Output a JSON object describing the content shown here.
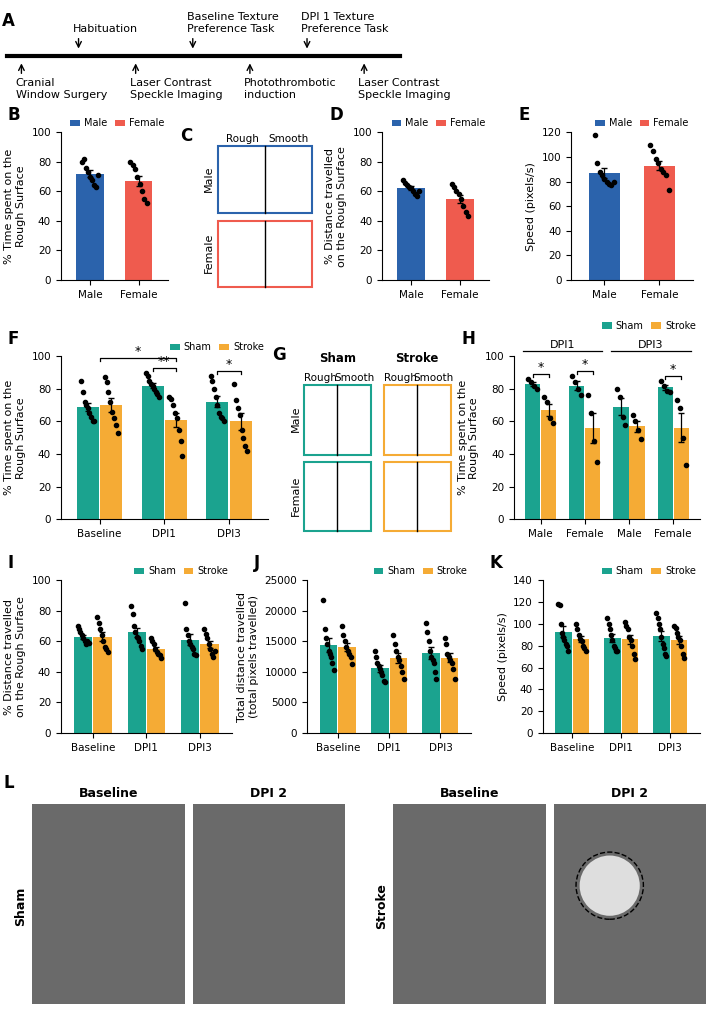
{
  "chart_data": [
    {
      "panel": "B",
      "type": "bar",
      "categories": [
        "Male",
        "Female"
      ],
      "ylabel": "% Time spent on the\nRough Surface",
      "ylim": [
        0,
        100
      ],
      "yticks": [
        0,
        20,
        40,
        60,
        80,
        100
      ],
      "legend": "upper right",
      "series": [
        {
          "name": "Male",
          "color": "#2b63ac",
          "values": [
            71.9,
            null
          ],
          "errors": [
            2.3,
            null
          ],
          "points": [
            [
              80,
              82,
              76,
              73,
              70,
              68,
              64,
              63,
              71
            ],
            null
          ]
        },
        {
          "name": "Female",
          "color": "#ef5b4e",
          "values": [
            null,
            66.9
          ],
          "errors": [
            null,
            3.5
          ],
          "points": [
            null,
            [
              80,
              78,
              75,
              70,
              65,
              60,
              55,
              52
            ]
          ]
        }
      ]
    },
    {
      "panel": "D",
      "type": "bar",
      "categories": [
        "Male",
        "Female"
      ],
      "ylabel": "% Distance travelled\non the Rough Surface",
      "ylim": [
        0,
        100
      ],
      "yticks": [
        0,
        20,
        40,
        60,
        80,
        100
      ],
      "legend": "upper right",
      "series": [
        {
          "name": "Male",
          "color": "#2b63ac",
          "values": [
            62,
            null
          ],
          "errors": [
            1.4,
            null
          ],
          "points": [
            [
              68,
              66,
              64,
              63,
              62,
              60,
              58,
              57,
              60
            ],
            null
          ]
        },
        {
          "name": "Female",
          "color": "#ef5b4e",
          "values": [
            null,
            55
          ],
          "errors": [
            null,
            2.8
          ],
          "points": [
            null,
            [
              65,
              63,
              60,
              58,
              55,
              50,
              46,
              43
            ]
          ]
        }
      ]
    },
    {
      "panel": "E",
      "type": "bar",
      "categories": [
        "Male",
        "Female"
      ],
      "ylabel": "Speed (pixels/s)",
      "ylim": [
        0,
        120
      ],
      "yticks": [
        0,
        20,
        40,
        60,
        80,
        100,
        120
      ],
      "legend": "upper right",
      "series": [
        {
          "name": "Male",
          "color": "#2b63ac",
          "values": [
            87,
            null
          ],
          "errors": [
            4,
            null
          ],
          "points": [
            [
              118,
              95,
              88,
              85,
              82,
              80,
              78,
              77,
              80
            ],
            null
          ]
        },
        {
          "name": "Female",
          "color": "#ef5b4e",
          "values": [
            null,
            93
          ],
          "errors": [
            null,
            4
          ],
          "points": [
            null,
            [
              110,
              105,
              98,
              95,
              90,
              88,
              85,
              73
            ]
          ]
        }
      ]
    },
    {
      "panel": "F",
      "type": "bar",
      "categories": [
        "Baseline",
        "DPI1",
        "DPI3"
      ],
      "ylabel": "% Time spent on the\nRough Surface",
      "ylim": [
        0,
        100
      ],
      "yticks": [
        0,
        20,
        40,
        60,
        80,
        100
      ],
      "legend": "upper right",
      "series": [
        {
          "name": "Sham",
          "color": "#1ba38f",
          "values": [
            69,
            82,
            72
          ],
          "errors": [
            2.6,
            1.6,
            3.4
          ],
          "points": [
            [
              85,
              78,
              72,
              70,
              68,
              65,
              63,
              60,
              60
            ],
            [
              90,
              88,
              85,
              83,
              82,
              80,
              78,
              77,
              75
            ],
            [
              88,
              85,
              80,
              75,
              70,
              65,
              63,
              62,
              60
            ]
          ]
        },
        {
          "name": "Stroke",
          "color": "#f5ab35",
          "values": [
            70,
            61,
            60
          ],
          "errors": [
            4.2,
            4.4,
            5.2
          ],
          "points": [
            [
              87,
              84,
              78,
              72,
              66,
              62,
              58,
              53
            ],
            [
              75,
              74,
              70,
              65,
              62,
              55,
              48,
              39
            ],
            [
              83,
              73,
              68,
              64,
              55,
              50,
              45,
              42
            ]
          ]
        }
      ],
      "significance": [
        {
          "label": "**",
          "between": [
            [
              1,
              0
            ],
            [
              1,
              1
            ]
          ]
        },
        {
          "label": "*",
          "between": [
            [
              0,
              null
            ],
            [
              1,
              1
            ]
          ]
        },
        {
          "label": "*",
          "between": [
            [
              2,
              0
            ],
            [
              2,
              1
            ]
          ]
        }
      ]
    },
    {
      "panel": "H",
      "type": "bar",
      "categories": [
        "Male",
        "Female",
        "Male",
        "Female"
      ],
      "ylabel": "% Time spent on the\nRough Surface",
      "ylim": [
        0,
        100
      ],
      "yticks": [
        0,
        20,
        40,
        60,
        80,
        100
      ],
      "legend": "upper right",
      "groups": [
        {
          "label": "DPI1",
          "categories": [
            0,
            1
          ]
        },
        {
          "label": "DPI3",
          "categories": [
            2,
            3
          ]
        }
      ],
      "series": [
        {
          "name": "Sham",
          "color": "#1ba38f",
          "values": [
            83,
            82,
            69,
            81
          ],
          "errors": [
            1.3,
            2.6,
            5.1,
            1.6
          ],
          "points": [
            [
              86,
              84,
              82,
              80
            ],
            [
              88,
              84,
              80,
              76
            ],
            [
              80,
              75,
              63,
              58
            ],
            [
              85,
              82,
              79,
              78
            ]
          ]
        },
        {
          "name": "Stroke",
          "color": "#f5ab35",
          "values": [
            67,
            56,
            57,
            56
          ],
          "errors": [
            3.8,
            9,
            3.3,
            8.9
          ],
          "points": [
            [
              75,
              72,
              62,
              59
            ],
            [
              76,
              65,
              48,
              35
            ],
            [
              64,
              60,
              55,
              49
            ],
            [
              73,
              68,
              50,
              33
            ]
          ]
        }
      ],
      "significance": [
        {
          "label": "*",
          "between": [
            [
              0,
              0
            ],
            [
              0,
              1
            ]
          ]
        },
        {
          "label": "*",
          "between": [
            [
              1,
              0
            ],
            [
              1,
              1
            ]
          ]
        },
        {
          "label": "*",
          "between": [
            [
              3,
              0
            ],
            [
              3,
              1
            ]
          ]
        }
      ]
    },
    {
      "panel": "I",
      "type": "bar",
      "categories": [
        "Baseline",
        "DPI1",
        "DPI3"
      ],
      "ylabel": "% Distance travelled\non the Rough Surface",
      "ylim": [
        0,
        100
      ],
      "yticks": [
        0,
        20,
        40,
        60,
        80,
        100
      ],
      "legend": "upper right",
      "series": [
        {
          "name": "Sham",
          "color": "#1ba38f",
          "values": [
            63,
            66,
            61
          ],
          "errors": [
            1.3,
            3,
            3.5
          ],
          "points": [
            [
              70,
              68,
              66,
              64,
              62,
              60,
              58,
              60,
              59
            ],
            [
              83,
              78,
              70,
              66,
              63,
              62,
              60,
              57,
              55
            ],
            [
              85,
              68,
              64,
              60,
              58,
              56,
              55,
              52,
              51
            ]
          ]
        },
        {
          "name": "Stroke",
          "color": "#f5ab35",
          "values": [
            63,
            55,
            58
          ],
          "errors": [
            2.9,
            1.5,
            2.3
          ],
          "points": [
            [
              76,
              72,
              68,
              64,
              60,
              56,
              55,
              53
            ],
            [
              62,
              60,
              58,
              55,
              53,
              52,
              51,
              49
            ],
            [
              68,
              65,
              62,
              58,
              55,
              52,
              50,
              54
            ]
          ]
        }
      ]
    },
    {
      "panel": "J",
      "type": "bar",
      "categories": [
        "Baseline",
        "DPI1",
        "DPI3"
      ],
      "ylabel": "Total distance travelled\n(total pixels travelled)",
      "ylim": [
        0,
        25000
      ],
      "yticks": [
        0,
        5000,
        10000,
        15000,
        20000,
        25000
      ],
      "legend": "upper right",
      "series": [
        {
          "name": "Sham",
          "color": "#1ba38f",
          "values": [
            14400,
            10600,
            13100
          ],
          "errors": [
            1100,
            550,
            1000
          ],
          "points": [
            [
              21800,
              17000,
              15500,
              14500,
              13500,
              13000,
              12500,
              11500,
              10300
            ],
            [
              13500,
              12500,
              11500,
              11000,
              10500,
              10000,
              9500,
              8500,
              8400
            ],
            [
              18000,
              16500,
              15000,
              13500,
              12500,
              12000,
              11500,
              10000,
              8900
            ]
          ]
        },
        {
          "name": "Stroke",
          "color": "#f5ab35",
          "values": [
            14100,
            12300,
            12300
          ],
          "errors": [
            700,
            850,
            750
          ],
          "points": [
            [
              17500,
              16000,
              15000,
              14000,
              13500,
              13000,
              12500,
              11300
            ],
            [
              16000,
              14500,
              13500,
              12500,
              12000,
              11000,
              10000,
              8900
            ],
            [
              15500,
              14500,
              13000,
              12500,
              12000,
              11500,
              10500,
              8900
            ]
          ]
        }
      ]
    },
    {
      "panel": "K",
      "type": "bar",
      "categories": [
        "Baseline",
        "DPI1",
        "DPI3"
      ],
      "ylabel": "Speed (pixels/s)",
      "ylim": [
        0,
        140
      ],
      "yticks": [
        0,
        20,
        40,
        60,
        80,
        100,
        120,
        140
      ],
      "legend": "upper right",
      "series": [
        {
          "name": "Sham",
          "color": "#1ba38f",
          "values": [
            93,
            87,
            89
          ],
          "errors": [
            4.8,
            3.5,
            4.5
          ],
          "points": [
            [
              118,
              117,
              100,
              92,
              88,
              85,
              82,
              80,
              75
            ],
            [
              105,
              100,
              95,
              90,
              85,
              80,
              78,
              75,
              75
            ],
            [
              110,
              105,
              100,
              95,
              88,
              82,
              78,
              72,
              71
            ]
          ]
        },
        {
          "name": "Stroke",
          "color": "#f5ab35",
          "values": [
            86,
            86,
            85
          ],
          "errors": [
            3,
            4.2,
            3.7
          ],
          "points": [
            [
              100,
              95,
              90,
              86,
              84,
              80,
              78,
              75
            ],
            [
              102,
              98,
              95,
              88,
              85,
              80,
              72,
              68
            ],
            [
              98,
              96,
              92,
              88,
              85,
              80,
              72,
              69
            ]
          ]
        }
      ]
    }
  ],
  "timeline": {
    "panel": "A",
    "events": [
      {
        "label": "Cranial\nWindow Surgery",
        "side": "below"
      },
      {
        "label": "Habituation",
        "side": "above"
      },
      {
        "label": "Laser Contrast\nSpeckle Imaging",
        "side": "below"
      },
      {
        "label": "Baseline Texture\nPreference Task",
        "side": "above"
      },
      {
        "label": "Photothrombotic\ninduction",
        "side": "below"
      },
      {
        "label": "DPI 1 Texture\nPreference Task",
        "side": "above"
      },
      {
        "label": "Laser Contrast\nSpeckle Imaging",
        "side": "below"
      }
    ]
  },
  "traces": [
    {
      "panel": "C",
      "surfaces": [
        "Rough",
        "Smooth"
      ],
      "rows": [
        "Male",
        "Female"
      ],
      "columns": [],
      "colors": [
        [
          "#2b63ac"
        ],
        [
          "#ef5b4e"
        ]
      ]
    },
    {
      "panel": "G",
      "surfaces": [
        "Rough",
        "Smooth"
      ],
      "rows": [
        "Male",
        "Female"
      ],
      "columns": [
        "Sham",
        "Stroke"
      ],
      "colors": [
        [
          "#1ba38f",
          "#f5ab35"
        ],
        [
          "#1ba38f",
          "#f5ab35"
        ]
      ]
    }
  ],
  "images": {
    "panel": "L",
    "columns": [
      "Baseline",
      "DPI 2",
      "Baseline",
      "DPI 2"
    ],
    "rows": [
      {
        "label": "Sham",
        "columns": [
          0,
          1
        ]
      },
      {
        "label": "Stroke",
        "columns": [
          2,
          3
        ]
      }
    ],
    "marked": [
      3
    ]
  }
}
